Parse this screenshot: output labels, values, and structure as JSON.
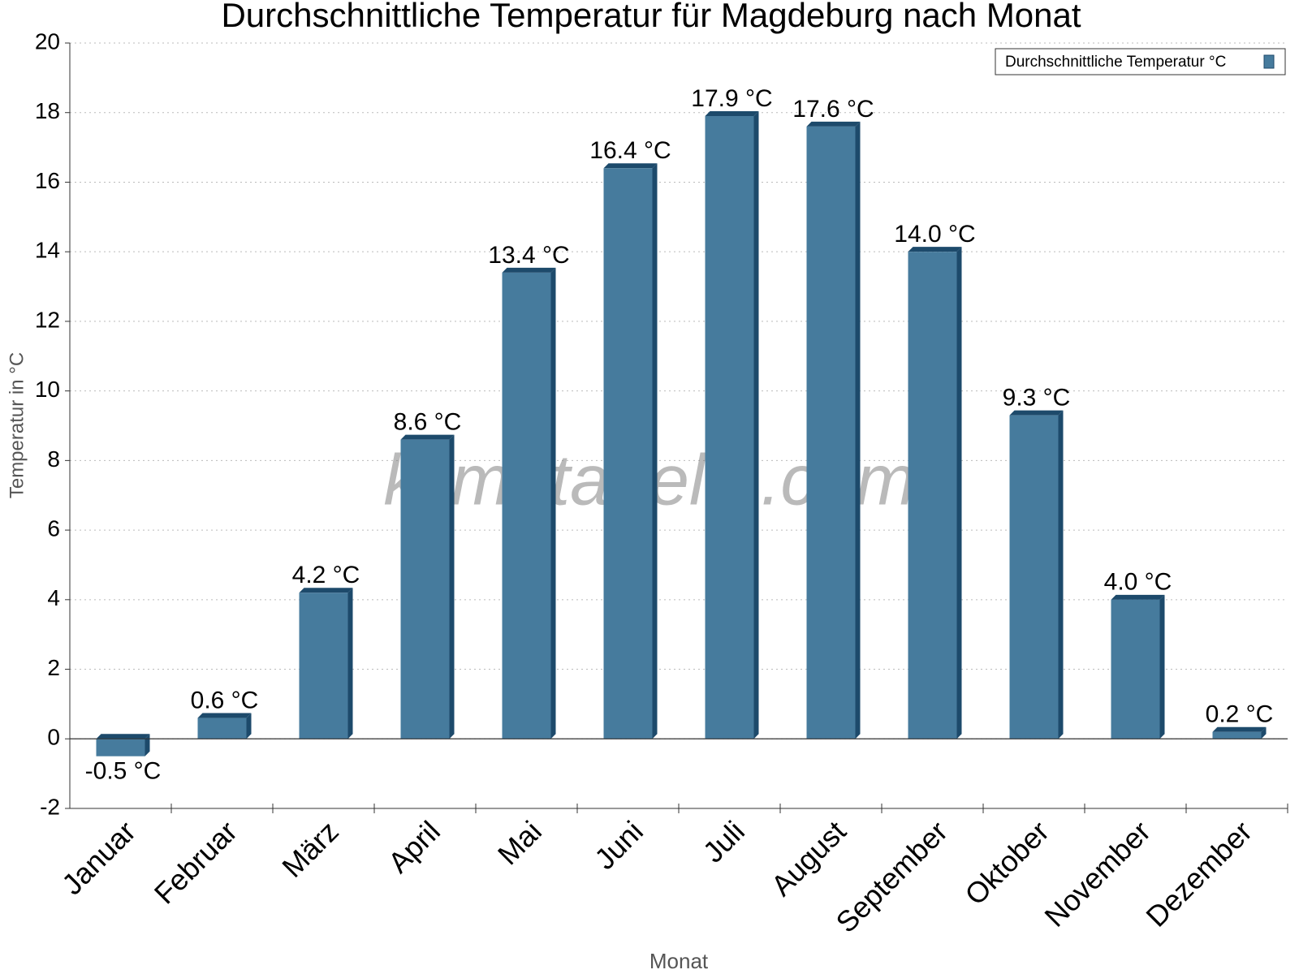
{
  "chart_data": {
    "type": "bar",
    "title": "Durchschnittliche Temperatur für Magdeburg nach Monat",
    "x_label": "Monat",
    "y_label": "Temperatur in °C",
    "watermark": "klimatabelle.com",
    "categories": [
      "Januar",
      "Februar",
      "März",
      "April",
      "Mai",
      "Juni",
      "Juli",
      "August",
      "September",
      "Oktober",
      "November",
      "Dezember"
    ],
    "series": [
      {
        "name": "Durchschnittliche Temperatur °C",
        "color": "#467b9d",
        "values": [
          -0.5,
          0.6,
          4.2,
          8.6,
          13.4,
          16.4,
          17.9,
          17.6,
          14.0,
          9.3,
          4.0,
          0.2
        ],
        "value_labels": [
          "-0.5 °C",
          "0.6 °C",
          "4.2 °C",
          "8.6 °C",
          "13.4 °C",
          "16.4 °C",
          "17.9 °C",
          "17.6 °C",
          "14.0 °C",
          "9.3 °C",
          "4.0 °C",
          "0.2 °C"
        ]
      }
    ],
    "ylim": [
      -2,
      20
    ],
    "yticks": [
      -2,
      0,
      2,
      4,
      6,
      8,
      10,
      12,
      14,
      16,
      18,
      20
    ],
    "grid": true,
    "legend": "top-right"
  }
}
